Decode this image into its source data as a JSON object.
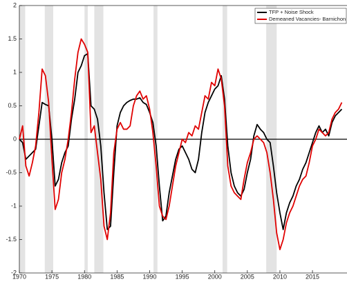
{
  "chart_data": {
    "type": "line",
    "xlim": [
      1970,
      2020.3
    ],
    "ylim": [
      -2,
      2
    ],
    "xticks": [
      1970,
      1975,
      1980,
      1985,
      1990,
      1995,
      2000,
      2005,
      2010,
      2015
    ],
    "yticks": [
      -2,
      -1.5,
      -1,
      -0.5,
      0,
      0.5,
      1,
      1.5,
      2
    ],
    "hline": 0,
    "legend": "top-right",
    "shaded_regions": [
      [
        1970,
        1970.9
      ],
      [
        1973.9,
        1975.2
      ],
      [
        1980,
        1980.5
      ],
      [
        1981.5,
        1982.9
      ],
      [
        1990.6,
        1991.2
      ],
      [
        2001.2,
        2001.9
      ],
      [
        2007.9,
        2009.5
      ]
    ],
    "shade_color": "#e3e3e3",
    "x": [
      1970,
      1970.5,
      1971,
      1971.5,
      1972,
      1972.5,
      1973,
      1973.5,
      1974,
      1974.5,
      1975,
      1975.5,
      1976,
      1976.5,
      1977,
      1977.5,
      1978,
      1978.5,
      1979,
      1979.5,
      1980,
      1980.5,
      1981,
      1981.5,
      1982,
      1982.5,
      1983,
      1983.5,
      1984,
      1984.5,
      1985,
      1985.5,
      1986,
      1986.5,
      1987,
      1987.5,
      1988,
      1988.5,
      1989,
      1989.5,
      1990,
      1990.5,
      1991,
      1991.5,
      1992,
      1992.5,
      1993,
      1993.5,
      1994,
      1994.5,
      1995,
      1995.5,
      1996,
      1996.5,
      1997,
      1997.5,
      1998,
      1998.5,
      1999,
      1999.5,
      2000,
      2000.5,
      2001,
      2001.5,
      2002,
      2002.5,
      2003,
      2003.5,
      2004,
      2004.5,
      2005,
      2005.5,
      2006,
      2006.5,
      2007,
      2007.5,
      2008,
      2008.5,
      2009,
      2009.5,
      2010,
      2010.5,
      2011,
      2011.5,
      2012,
      2012.5,
      2013,
      2013.5,
      2014,
      2014.5,
      2015,
      2015.5,
      2016,
      2016.5,
      2017,
      2017.5,
      2018,
      2018.5,
      2019,
      2019.5
    ],
    "series": [
      {
        "name": "TFP + Noise Shock",
        "color": "#000000",
        "values": [
          0,
          -0.05,
          -0.3,
          -0.25,
          -0.2,
          -0.15,
          0.2,
          0.55,
          0.52,
          0.5,
          0,
          -0.7,
          -0.6,
          -0.35,
          -0.2,
          -0.1,
          0.3,
          0.6,
          1,
          1.1,
          1.25,
          1.28,
          0.5,
          0.45,
          0.3,
          -0.1,
          -0.8,
          -1.35,
          -1.3,
          -0.5,
          0.2,
          0.4,
          0.5,
          0.55,
          0.58,
          0.6,
          0.6,
          0.62,
          0.55,
          0.52,
          0.4,
          0.25,
          -0.1,
          -0.7,
          -1.22,
          -1.15,
          -0.8,
          -0.55,
          -0.3,
          -0.15,
          -0.1,
          -0.2,
          -0.3,
          -0.45,
          -0.5,
          -0.3,
          0.1,
          0.4,
          0.55,
          0.65,
          0.75,
          0.8,
          0.95,
          0.6,
          -0.1,
          -0.5,
          -0.7,
          -0.8,
          -0.85,
          -0.75,
          -0.5,
          -0.3,
          0.05,
          0.22,
          0.15,
          0.1,
          0,
          -0.05,
          -0.4,
          -0.8,
          -1.1,
          -1.35,
          -1.1,
          -0.95,
          -0.85,
          -0.7,
          -0.6,
          -0.45,
          -0.35,
          -0.2,
          -0.05,
          0.1,
          0.2,
          0.1,
          0.15,
          0.05,
          0.25,
          0.35,
          0.4,
          0.45
        ]
      },
      {
        "name": "Demeaned Vacancies- Barnichon",
        "color": "#e00000",
        "values": [
          0,
          0.2,
          -0.4,
          -0.55,
          -0.35,
          -0.1,
          0.4,
          1.05,
          0.95,
          0.55,
          -0.3,
          -1.05,
          -0.9,
          -0.5,
          -0.3,
          0,
          0.4,
          0.9,
          1.3,
          1.5,
          1.42,
          1.3,
          0.1,
          0.2,
          -0.2,
          -0.6,
          -1.3,
          -1.5,
          -1.1,
          -0.2,
          0.15,
          0.25,
          0.15,
          0.15,
          0.2,
          0.5,
          0.65,
          0.72,
          0.6,
          0.65,
          0.45,
          0.1,
          -0.4,
          -1,
          -1.15,
          -1.2,
          -1,
          -0.7,
          -0.4,
          -0.2,
          0,
          -0.05,
          0.1,
          0.05,
          0.2,
          0.15,
          0.4,
          0.65,
          0.6,
          0.85,
          0.8,
          1.05,
          0.9,
          0.5,
          -0.4,
          -0.7,
          -0.8,
          -0.85,
          -0.9,
          -0.6,
          -0.35,
          -0.2,
          0,
          0.05,
          0,
          -0.05,
          -0.2,
          -0.5,
          -0.9,
          -1.4,
          -1.65,
          -1.5,
          -1.25,
          -1.1,
          -1,
          -0.85,
          -0.7,
          -0.6,
          -0.55,
          -0.35,
          -0.1,
          0,
          0.15,
          0.1,
          0.05,
          0.1,
          0.3,
          0.4,
          0.45,
          0.55
        ]
      }
    ]
  }
}
